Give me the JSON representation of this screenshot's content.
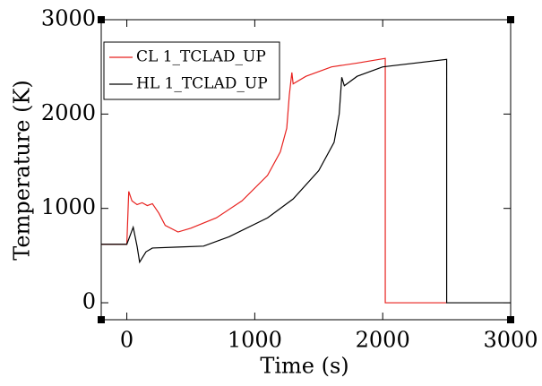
{
  "chart_data": {
    "type": "line",
    "x_label": "Time (s)",
    "y_label": "Temperature (K)",
    "xlim": [
      -200,
      3000
    ],
    "ylim": [
      -180,
      3000
    ],
    "xticks": [
      0,
      1000,
      2000,
      3000
    ],
    "yticks": [
      0,
      1000,
      2000,
      3000
    ],
    "legend": "upper left",
    "series": [
      {
        "name": "CL 1_TCLAD_UP",
        "color": "#e8221f",
        "x": [
          -200,
          0,
          15,
          40,
          80,
          120,
          160,
          200,
          250,
          300,
          400,
          500,
          700,
          900,
          1100,
          1200,
          1250,
          1270,
          1290,
          1300,
          1400,
          1600,
          1800,
          2020,
          2020,
          2500
        ],
        "values": [
          620,
          620,
          1180,
          1080,
          1040,
          1060,
          1030,
          1050,
          950,
          820,
          750,
          790,
          900,
          1080,
          1350,
          1600,
          1850,
          2200,
          2440,
          2320,
          2400,
          2500,
          2540,
          2590,
          0,
          0
        ]
      },
      {
        "name": "HL 1_TCLAD_UP",
        "color": "#000000",
        "x": [
          -200,
          0,
          50,
          80,
          100,
          150,
          200,
          400,
          600,
          800,
          1100,
          1300,
          1500,
          1620,
          1660,
          1680,
          1700,
          1800,
          2000,
          2500,
          2500,
          3000
        ],
        "values": [
          620,
          620,
          800,
          600,
          430,
          540,
          580,
          590,
          600,
          700,
          900,
          1100,
          1400,
          1700,
          2000,
          2390,
          2300,
          2400,
          2500,
          2580,
          0,
          0
        ]
      }
    ]
  }
}
